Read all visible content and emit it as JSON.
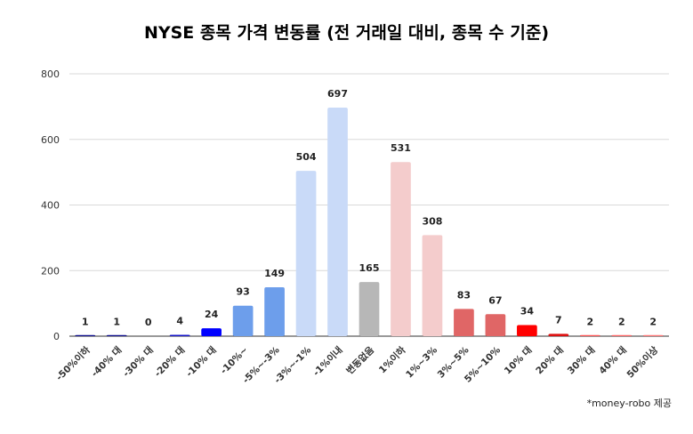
{
  "chart_data": {
    "type": "bar",
    "title": "NYSE 종목 가격 변동률 (전 거래일 대비, 종목 수 기준)",
    "xlabel": "",
    "ylabel": "",
    "ylim": [
      0,
      800
    ],
    "yticks": [
      "0",
      "200",
      "400",
      "600",
      "800"
    ],
    "grid": true,
    "categories": [
      "-50%이하",
      "-40% 대",
      "-30% 대",
      "-20% 대",
      "-10% 대",
      "-10%~",
      "-5%~-3%",
      "-3%~-1%",
      "-1%이내",
      "변동없음",
      "1%이하",
      "1%~3%",
      "3%~5%",
      "5%~10%",
      "10% 대",
      "20% 대",
      "30% 대",
      "40% 대",
      "50%이상"
    ],
    "values": [
      1,
      1,
      0,
      4,
      24,
      93,
      149,
      504,
      697,
      165,
      531,
      308,
      83,
      67,
      34,
      7,
      2,
      2,
      2
    ],
    "colors": [
      "#0b0b8a",
      "#0b0b8a",
      "#0b0b8a",
      "#1414c8",
      "#0000ff",
      "#6d9eeb",
      "#6d9eeb",
      "#c9daf8",
      "#c9daf8",
      "#b7b7b7",
      "#f4cccc",
      "#f4cccc",
      "#e06666",
      "#e06666",
      "#ff0000",
      "#dd1111",
      "#ff5555",
      "#ff6666",
      "#ff7777"
    ]
  },
  "source_note": "*money-robo 제공"
}
